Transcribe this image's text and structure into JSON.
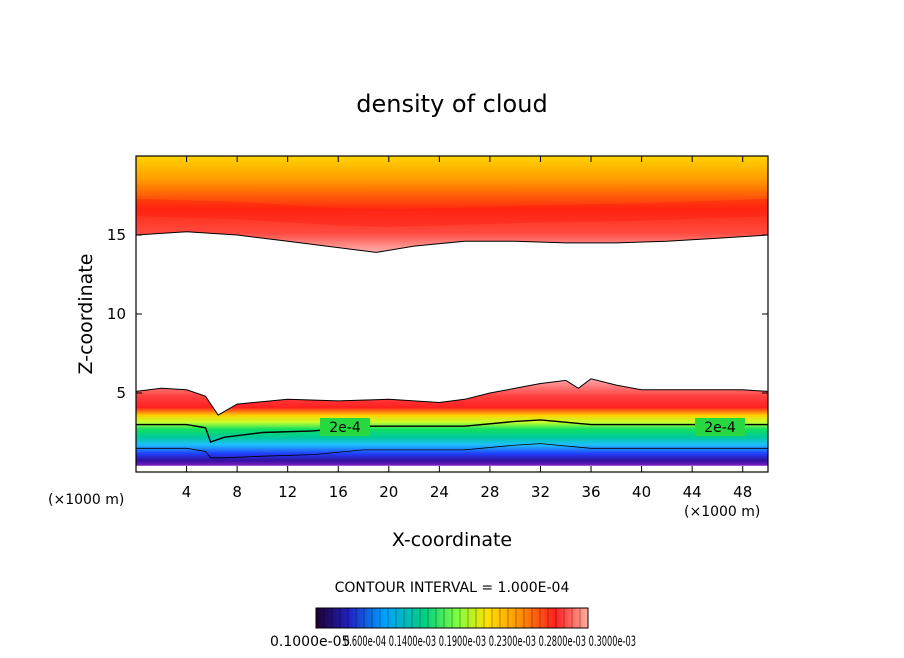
{
  "chart_data": {
    "type": "contour",
    "title": "density of cloud",
    "xlabel": "X-coordinate",
    "ylabel": "Z-coordinate",
    "x_unit": "(×1000 m)",
    "y_unit": "(×1000 m)",
    "xlim": [
      0,
      50
    ],
    "ylim": [
      0,
      20
    ],
    "x_ticks": [
      "4",
      "8",
      "12",
      "16",
      "20",
      "24",
      "28",
      "32",
      "36",
      "40",
      "44",
      "48"
    ],
    "y_ticks": [
      "5",
      "10",
      "15"
    ],
    "contour_interval_text": "CONTOUR INTERVAL = 1.000E-04",
    "contour_label": "2e-4",
    "colorbar_labels_text": "0.1000e-05",
    "colorbar_labels_overlap": "0.600e-04 0.1400e-03 0.1900e-03 0.2300e-03 0.2800e-03 0.3000e-03",
    "upper_layer": {
      "lower_boundary": [
        [
          0,
          15.0
        ],
        [
          4,
          15.2
        ],
        [
          8,
          15.0
        ],
        [
          12,
          14.6
        ],
        [
          16,
          14.2
        ],
        [
          19,
          13.9
        ],
        [
          22,
          14.3
        ],
        [
          26,
          14.6
        ],
        [
          30,
          14.6
        ],
        [
          34,
          14.5
        ],
        [
          38,
          14.5
        ],
        [
          42,
          14.6
        ],
        [
          46,
          14.8
        ],
        [
          50,
          15.0
        ]
      ],
      "max_density_z": [
        [
          0,
          16.8
        ],
        [
          8,
          16.6
        ],
        [
          16,
          16.2
        ],
        [
          20,
          16.1
        ],
        [
          24,
          16.2
        ],
        [
          32,
          16.4
        ],
        [
          40,
          16.5
        ],
        [
          50,
          16.8
        ]
      ]
    },
    "lower_layer": {
      "top_boundary": [
        [
          0,
          5.1
        ],
        [
          2,
          5.3
        ],
        [
          4,
          5.2
        ],
        [
          5.5,
          4.8
        ],
        [
          6.5,
          3.6
        ],
        [
          8,
          4.3
        ],
        [
          12,
          4.6
        ],
        [
          16,
          4.5
        ],
        [
          20,
          4.6
        ],
        [
          24,
          4.4
        ],
        [
          26,
          4.6
        ],
        [
          28,
          5.0
        ],
        [
          30,
          5.3
        ],
        [
          32,
          5.6
        ],
        [
          34,
          5.8
        ],
        [
          35,
          5.3
        ],
        [
          36,
          5.9
        ],
        [
          38,
          5.5
        ],
        [
          40,
          5.2
        ],
        [
          44,
          5.2
        ],
        [
          48,
          5.2
        ],
        [
          50,
          5.1
        ]
      ],
      "contour_2e-4": [
        [
          0,
          3.0
        ],
        [
          4,
          3.0
        ],
        [
          5.5,
          2.8
        ],
        [
          5.9,
          1.9
        ],
        [
          7,
          2.2
        ],
        [
          10,
          2.5
        ],
        [
          14,
          2.6
        ],
        [
          18,
          2.9
        ],
        [
          22,
          2.9
        ],
        [
          26,
          2.9
        ],
        [
          30,
          3.2
        ],
        [
          32,
          3.3
        ],
        [
          36,
          3.0
        ],
        [
          42,
          3.0
        ],
        [
          50,
          3.0
        ]
      ],
      "bottom_boundary": [
        [
          0,
          0.4
        ],
        [
          50,
          0.4
        ]
      ]
    }
  }
}
